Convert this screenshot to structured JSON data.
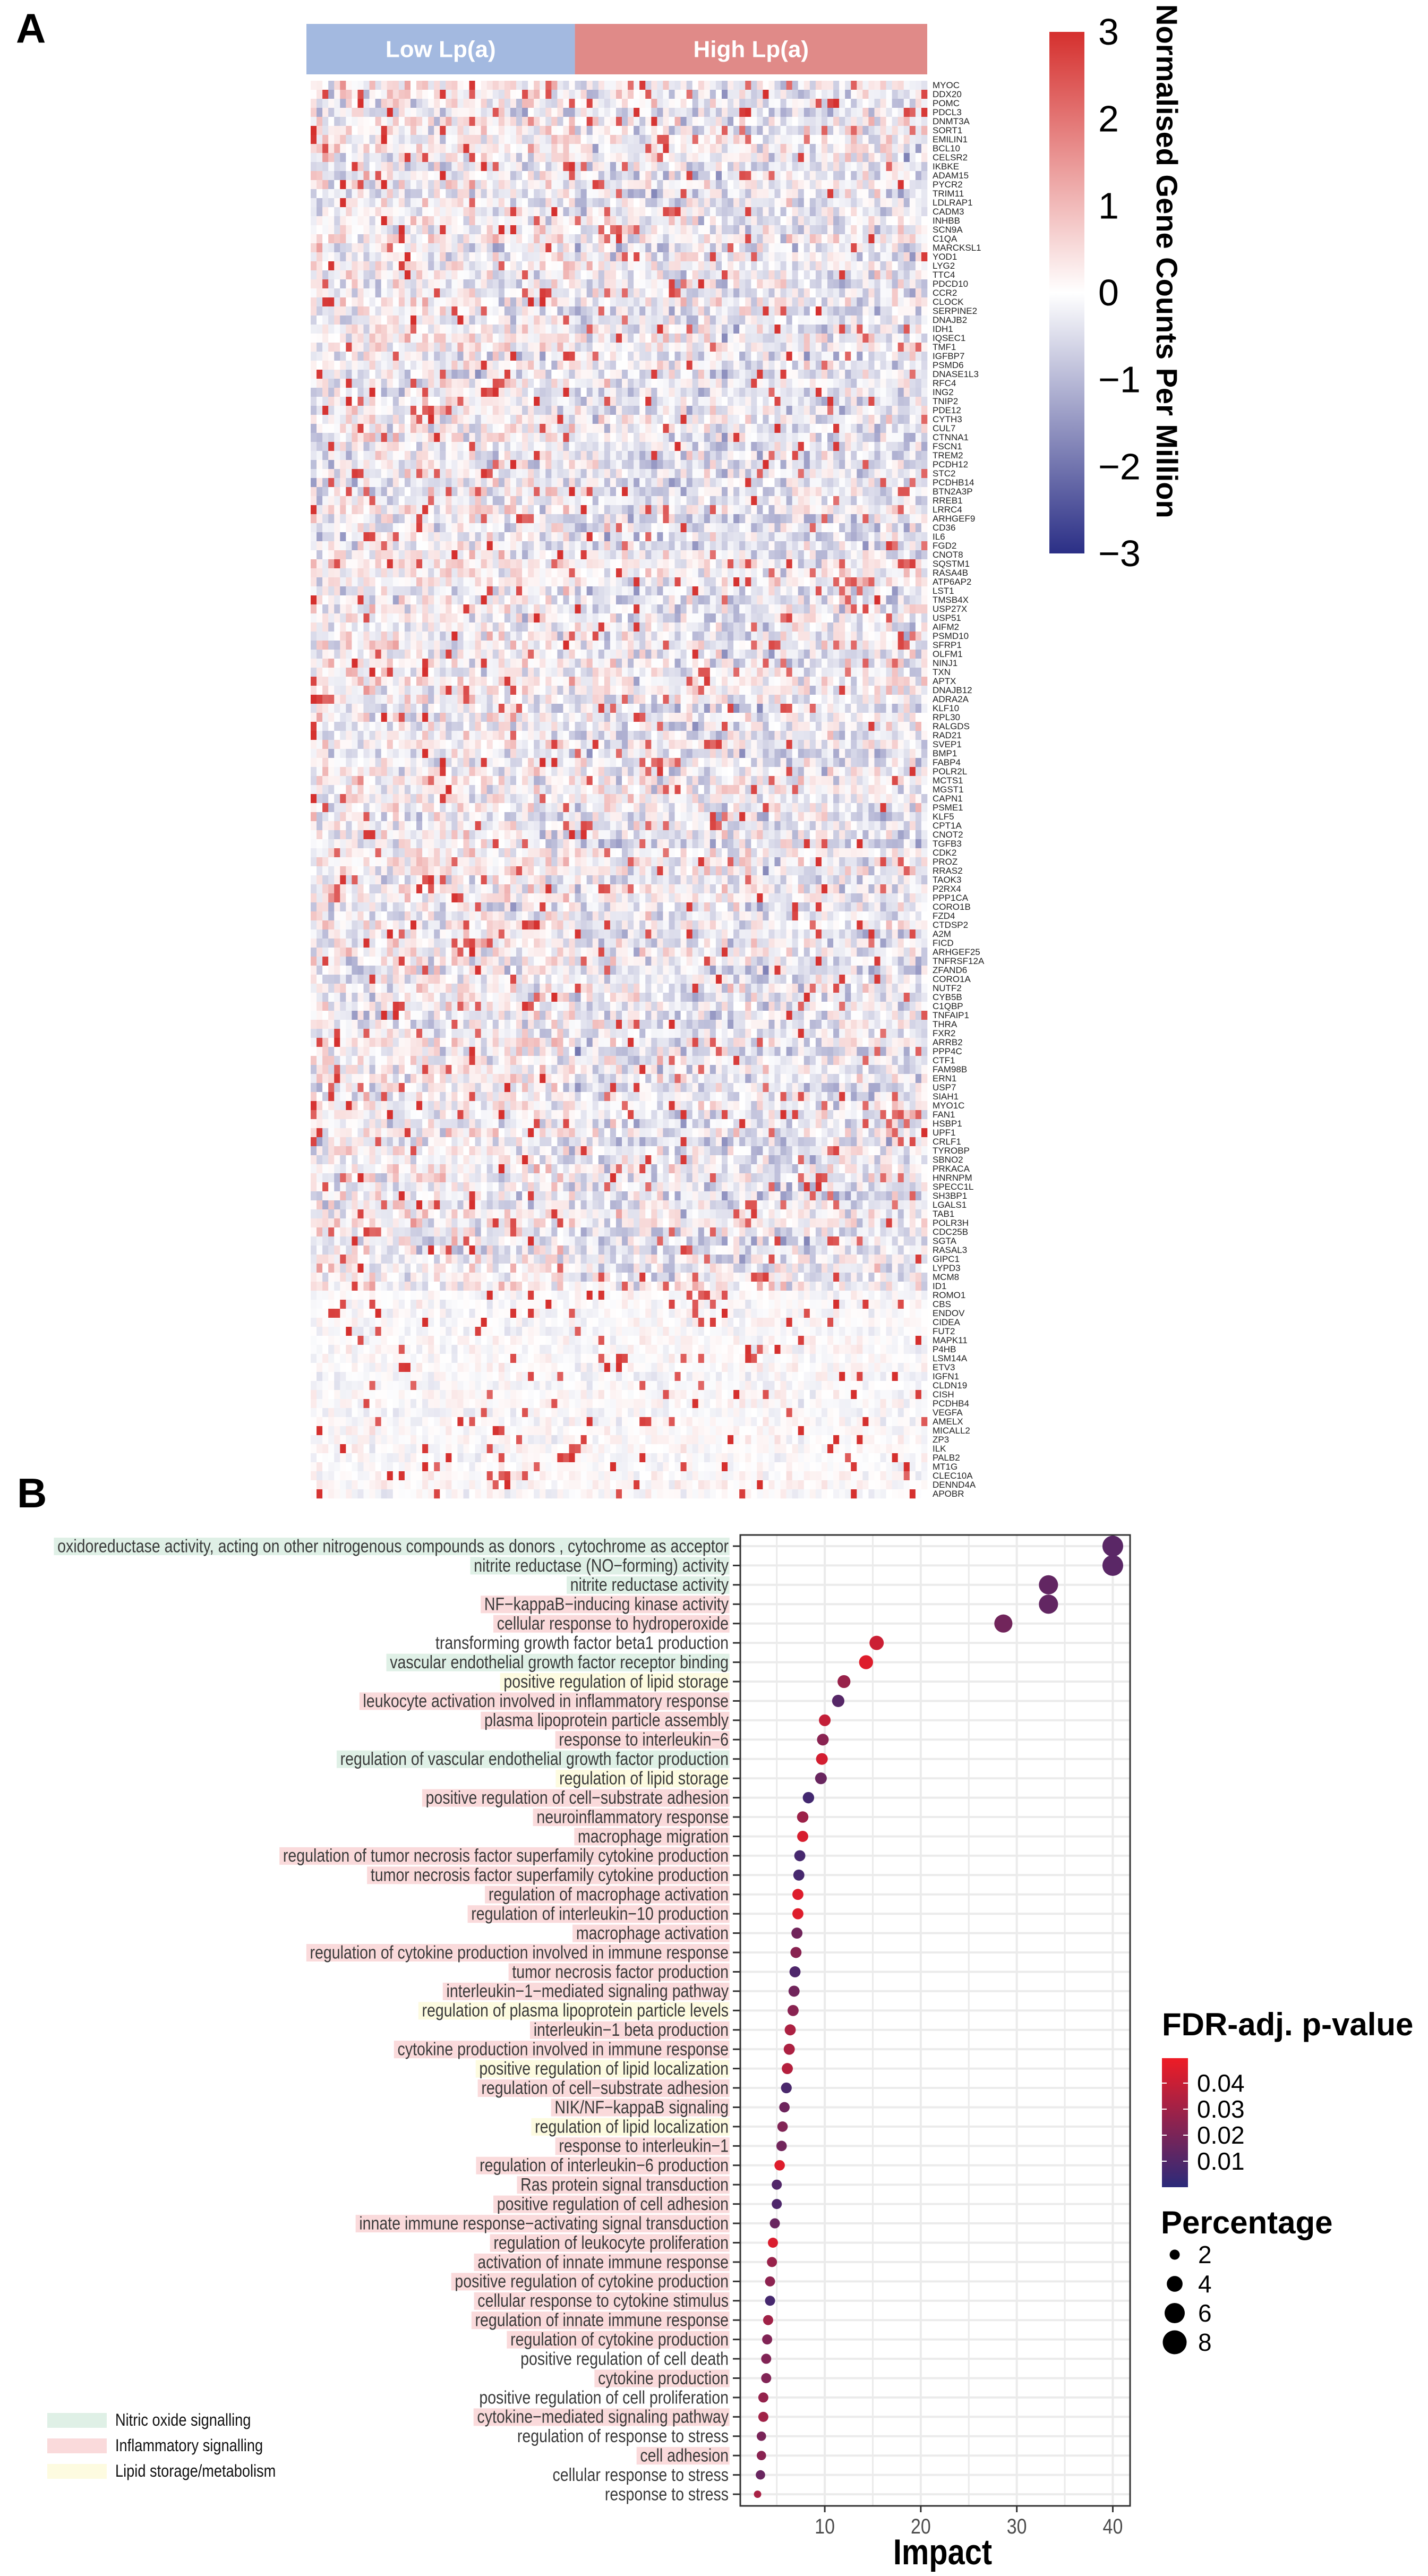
{
  "panels": {
    "a": "A",
    "b": "B"
  },
  "chart_data": [
    {
      "type": "heatmap",
      "groups": [
        {
          "label": "Low Lp(a)",
          "color": "#a3b9e0"
        },
        {
          "label": "High Lp(a)",
          "color": "#e08a88"
        }
      ],
      "rows": [
        "MYOC",
        "DDX20",
        "POMC",
        "PDCL3",
        "DNMT3A",
        "SORT1",
        "EMILIN1",
        "BCL10",
        "CELSR2",
        "IKBKE",
        "ADAM15",
        "PYCR2",
        "TRIM11",
        "LDLRAP1",
        "CADM3",
        "INHBB",
        "SCN9A",
        "C1QA",
        "MARCKSL1",
        "YOD1",
        "LYG2",
        "TTC4",
        "PDCD10",
        "CCR2",
        "CLOCK",
        "SERPINE2",
        "DNAJB2",
        "IDH1",
        "IQSEC1",
        "TMF1",
        "IGFBP7",
        "PSMD6",
        "DNASE1L3",
        "RFC4",
        "ING2",
        "TNIP2",
        "PDE12",
        "CYTH3",
        "CUL7",
        "CTNNA1",
        "FSCN1",
        "TREM2",
        "PCDH12",
        "STC2",
        "PCDHB14",
        "BTN2A3P",
        "RREB1",
        "LRRC4",
        "ARHGEF9",
        "CD36",
        "IL6",
        "FGD2",
        "CNOT8",
        "SQSTM1",
        "RASA4B",
        "ATP6AP2",
        "LST1",
        "TMSB4X",
        "USP27X",
        "USP51",
        "AIFM2",
        "PSMD10",
        "SFRP1",
        "OLFM1",
        "NINJ1",
        "TXN",
        "APTX",
        "DNAJB12",
        "ADRA2A",
        "KLF10",
        "RPL30",
        "RALGDS",
        "RAD21",
        "SVEP1",
        "BMP1",
        "FABP4",
        "POLR2L",
        "MCTS1",
        "MGST1",
        "CAPN1",
        "PSME1",
        "KLF5",
        "CPT1A",
        "CNOT2",
        "TGFB3",
        "CDK2",
        "PROZ",
        "RRAS2",
        "TAOK3",
        "P2RX4",
        "PPP1CA",
        "CORO1B",
        "FZD4",
        "CTDSP2",
        "A2M",
        "FICD",
        "ARHGEF25",
        "TNFRSF12A",
        "ZFAND6",
        "CORO1A",
        "NUTF2",
        "CYB5B",
        "C1QBP",
        "TNFAIP1",
        "THRA",
        "FXR2",
        "ARRB2",
        "PPP4C",
        "CTF1",
        "FAM98B",
        "ERN1",
        "USP7",
        "SIAH1",
        "MYO1C",
        "FAN1",
        "HSBP1",
        "UPF1",
        "CRLF1",
        "TYROBP",
        "SBNO2",
        "PRKACA",
        "HNRNPM",
        "SPECC1L",
        "SH3BP1",
        "LGALS1",
        "TAB1",
        "POLR3H",
        "CDC25B",
        "SGTA",
        "RASAL3",
        "GIPC1",
        "LYPD3",
        "MCM8",
        "ID1",
        "ROMO1",
        "CBS",
        "ENDOV",
        "CIDEA",
        "FUT2",
        "MAPK11",
        "P4HB",
        "LSM14A",
        "ETV3",
        "IGFN1",
        "CLDN19",
        "CISH",
        "PCDHB4",
        "VEGFA",
        "AMELX",
        "MICALL2",
        "ZP3",
        "ILK",
        "PALB2",
        "MT1G",
        "CLEC10A",
        "DENND4A",
        "APOBR"
      ],
      "colorbar": {
        "title": "Normalised Gene Counts Per Million",
        "range": [
          -3,
          3
        ],
        "ticks": [
          "3",
          "2",
          "1",
          "0",
          "−1",
          "−2",
          "−3"
        ],
        "colors": {
          "low": "#2b2f86",
          "mid": "#ffffff",
          "high": "#d5302e"
        }
      }
    },
    {
      "type": "scatter",
      "xlabel": "Impact",
      "x_ticks": [
        "10",
        "20",
        "30",
        "40"
      ],
      "xlim": [
        1.2,
        41.8
      ],
      "grid": true,
      "color_legend": {
        "title": "FDR-adj. p-value",
        "ticks": [
          "0.04",
          "0.03",
          "0.02",
          "0.01"
        ],
        "range": [
          0.0,
          0.05
        ],
        "low": "#2b2a7a",
        "high": "#ee1c25"
      },
      "size_legend": {
        "title": "Percentage",
        "values": [
          2,
          4,
          6,
          8
        ],
        "labels": [
          "2",
          "4",
          "6",
          "8"
        ]
      },
      "category_legend": [
        {
          "key": "nitric",
          "label": "Nitric oxide signalling",
          "color": "#dff0e6"
        },
        {
          "key": "inflammatory",
          "label": "Inflammatory signalling",
          "color": "#fadadb"
        },
        {
          "key": "lipid",
          "label": "Lipid storage/metabolism",
          "color": "#fdfbe0"
        }
      ],
      "terms": [
        {
          "term": "oxidoreductase activity, acting on other nitrogenous compounds as donors , cytochrome as acceptor",
          "impact": 40.0,
          "fdr": 0.012,
          "percentage": 6.3,
          "category": "nitric"
        },
        {
          "term": "nitrite reductase (NO−forming) activity",
          "impact": 40.0,
          "fdr": 0.012,
          "percentage": 6.3,
          "category": "nitric"
        },
        {
          "term": "nitrite reductase activity",
          "impact": 33.3,
          "fdr": 0.014,
          "percentage": 5.5,
          "category": "nitric"
        },
        {
          "term": "NF−kappaB−inducing kinase activity",
          "impact": 33.3,
          "fdr": 0.014,
          "percentage": 5.5,
          "category": "inflammatory"
        },
        {
          "term": "cellular response to hydroperoxide",
          "impact": 28.6,
          "fdr": 0.018,
          "percentage": 5.0,
          "category": "inflammatory"
        },
        {
          "term": "transforming growth factor beta1 production",
          "impact": 15.4,
          "fdr": 0.041,
          "percentage": 3.4,
          "category": ""
        },
        {
          "term": "vascular endothelial growth factor receptor binding",
          "impact": 14.3,
          "fdr": 0.046,
          "percentage": 3.3,
          "category": "nitric"
        },
        {
          "term": "positive regulation of lipid storage",
          "impact": 12.0,
          "fdr": 0.028,
          "percentage": 2.9,
          "category": "lipid"
        },
        {
          "term": "leukocyte activation involved in inflammatory response",
          "impact": 11.4,
          "fdr": 0.011,
          "percentage": 2.7,
          "category": "inflammatory"
        },
        {
          "term": "plasma lipoprotein particle assembly",
          "impact": 10.0,
          "fdr": 0.039,
          "percentage": 2.5,
          "category": "inflammatory"
        },
        {
          "term": "response to interleukin−6",
          "impact": 9.8,
          "fdr": 0.024,
          "percentage": 2.5,
          "category": "inflammatory"
        },
        {
          "term": "regulation of vascular endothelial growth factor production",
          "impact": 9.7,
          "fdr": 0.043,
          "percentage": 2.5,
          "category": "nitric"
        },
        {
          "term": "regulation of lipid storage",
          "impact": 9.6,
          "fdr": 0.016,
          "percentage": 2.5,
          "category": "lipid"
        },
        {
          "term": "positive regulation of cell−substrate adhesion",
          "impact": 8.3,
          "fdr": 0.006,
          "percentage": 2.4,
          "category": "inflammatory"
        },
        {
          "term": "neuroinflammatory response",
          "impact": 7.7,
          "fdr": 0.029,
          "percentage": 2.4,
          "category": "inflammatory"
        },
        {
          "term": "macrophage migration",
          "impact": 7.7,
          "fdr": 0.044,
          "percentage": 2.3,
          "category": "inflammatory"
        },
        {
          "term": "regulation of tumor necrosis factor superfamily cytokine production",
          "impact": 7.4,
          "fdr": 0.007,
          "percentage": 2.3,
          "category": "inflammatory"
        },
        {
          "term": "tumor necrosis factor superfamily cytokine production",
          "impact": 7.3,
          "fdr": 0.007,
          "percentage": 2.3,
          "category": "inflammatory"
        },
        {
          "term": "regulation of macrophage activation",
          "impact": 7.2,
          "fdr": 0.046,
          "percentage": 2.3,
          "category": "inflammatory"
        },
        {
          "term": "regulation of interleukin−10 production",
          "impact": 7.2,
          "fdr": 0.046,
          "percentage": 2.3,
          "category": "inflammatory"
        },
        {
          "term": "macrophage activation",
          "impact": 7.1,
          "fdr": 0.018,
          "percentage": 2.3,
          "category": "inflammatory"
        },
        {
          "term": "regulation of cytokine production involved in immune response",
          "impact": 7.0,
          "fdr": 0.024,
          "percentage": 2.3,
          "category": "inflammatory"
        },
        {
          "term": "tumor necrosis factor production",
          "impact": 6.9,
          "fdr": 0.009,
          "percentage": 2.3,
          "category": "inflammatory"
        },
        {
          "term": "interleukin−1−mediated signaling pathway",
          "impact": 6.8,
          "fdr": 0.018,
          "percentage": 2.3,
          "category": "inflammatory"
        },
        {
          "term": "regulation of plasma lipoprotein particle levels",
          "impact": 6.7,
          "fdr": 0.024,
          "percentage": 2.3,
          "category": "lipid"
        },
        {
          "term": "interleukin−1 beta production",
          "impact": 6.4,
          "fdr": 0.033,
          "percentage": 2.3,
          "category": "inflammatory"
        },
        {
          "term": "cytokine production involved in immune response",
          "impact": 6.3,
          "fdr": 0.033,
          "percentage": 2.3,
          "category": "inflammatory"
        },
        {
          "term": "positive regulation of lipid localization",
          "impact": 6.1,
          "fdr": 0.035,
          "percentage": 2.3,
          "category": "lipid"
        },
        {
          "term": "regulation of cell−substrate adhesion",
          "impact": 6.0,
          "fdr": 0.008,
          "percentage": 2.2,
          "category": "inflammatory"
        },
        {
          "term": "NIK/NF−kappaB signaling",
          "impact": 5.8,
          "fdr": 0.017,
          "percentage": 2.1,
          "category": "inflammatory"
        },
        {
          "term": "regulation of lipid localization",
          "impact": 5.6,
          "fdr": 0.022,
          "percentage": 2.1,
          "category": "lipid"
        },
        {
          "term": "response to interleukin−1",
          "impact": 5.5,
          "fdr": 0.018,
          "percentage": 2.1,
          "category": "inflammatory"
        },
        {
          "term": "regulation of interleukin−6 production",
          "impact": 5.3,
          "fdr": 0.046,
          "percentage": 2.1,
          "category": "inflammatory"
        },
        {
          "term": "Ras protein signal transduction",
          "impact": 5.0,
          "fdr": 0.01,
          "percentage": 2.0,
          "category": "inflammatory"
        },
        {
          "term": "positive regulation of cell adhesion",
          "impact": 5.0,
          "fdr": 0.009,
          "percentage": 2.0,
          "category": "inflammatory"
        },
        {
          "term": "innate immune response−activating signal transduction",
          "impact": 4.8,
          "fdr": 0.016,
          "percentage": 2.0,
          "category": "inflammatory"
        },
        {
          "term": "regulation of leukocyte proliferation",
          "impact": 4.6,
          "fdr": 0.045,
          "percentage": 2.0,
          "category": "inflammatory"
        },
        {
          "term": "activation of innate immune response",
          "impact": 4.5,
          "fdr": 0.028,
          "percentage": 2.0,
          "category": "inflammatory"
        },
        {
          "term": "positive regulation of cytokine production",
          "impact": 4.3,
          "fdr": 0.025,
          "percentage": 2.0,
          "category": "inflammatory"
        },
        {
          "term": "cellular response to cytokine stimulus",
          "impact": 4.3,
          "fdr": 0.007,
          "percentage": 2.0,
          "category": "inflammatory"
        },
        {
          "term": "regulation of innate immune response",
          "impact": 4.1,
          "fdr": 0.03,
          "percentage": 2.0,
          "category": "inflammatory"
        },
        {
          "term": "regulation of cytokine production",
          "impact": 4.0,
          "fdr": 0.022,
          "percentage": 2.0,
          "category": "inflammatory"
        },
        {
          "term": "positive regulation of cell death",
          "impact": 3.9,
          "fdr": 0.022,
          "percentage": 2.0,
          "category": ""
        },
        {
          "term": "cytokine production",
          "impact": 3.9,
          "fdr": 0.022,
          "percentage": 2.0,
          "category": "inflammatory"
        },
        {
          "term": "positive regulation of cell proliferation",
          "impact": 3.6,
          "fdr": 0.027,
          "percentage": 2.0,
          "category": ""
        },
        {
          "term": "cytokine−mediated signaling pathway",
          "impact": 3.6,
          "fdr": 0.03,
          "percentage": 2.0,
          "category": "inflammatory"
        },
        {
          "term": "regulation of response to stress",
          "impact": 3.4,
          "fdr": 0.02,
          "percentage": 1.8,
          "category": ""
        },
        {
          "term": "cell adhesion",
          "impact": 3.4,
          "fdr": 0.024,
          "percentage": 1.8,
          "category": "inflammatory"
        },
        {
          "term": "cellular response to stress",
          "impact": 3.3,
          "fdr": 0.016,
          "percentage": 1.8,
          "category": ""
        },
        {
          "term": "response to stress",
          "impact": 3.0,
          "fdr": 0.032,
          "percentage": 1.3,
          "category": ""
        }
      ]
    }
  ]
}
